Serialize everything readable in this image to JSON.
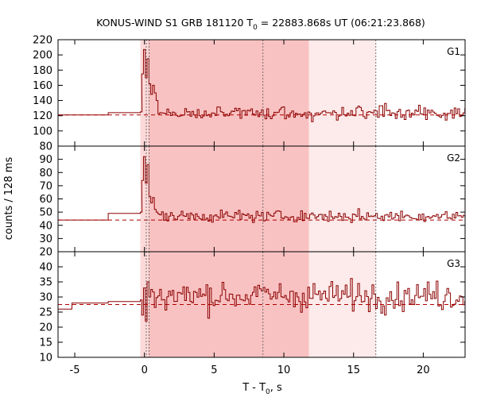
{
  "chart_data": {
    "type": "line",
    "title_main": "KONUS-WIND S1 GRB 181120 T",
    "title_sub": "0",
    "title_rest": " = 22883.868s UT (06:21:23.868)",
    "xlabel_main": "T - T",
    "xlabel_sub": "0",
    "xlabel_rest": ", s",
    "ylabel": "counts / 128 ms",
    "xlim": [
      -6.2,
      23.0
    ],
    "xticks": [
      -5,
      0,
      5,
      10,
      15,
      20
    ],
    "shaded_regions": [
      {
        "from": -0.3,
        "to": 11.8,
        "color": "#fdd9d9"
      },
      {
        "from": 0.3,
        "to": 11.8,
        "color": "#f9c2c2"
      },
      {
        "from": 11.8,
        "to": 16.6,
        "color": "#fdeaea"
      }
    ],
    "vertical_markers": [
      0.13,
      0.33,
      8.5,
      16.6
    ],
    "colors": {
      "curve": "#8b0000",
      "background_line": "#b00000",
      "shade": "#f9c2c2",
      "marker": "#555555"
    },
    "panels": [
      {
        "label": "G1",
        "ylim": [
          80,
          220
        ],
        "yticks": [
          80,
          100,
          120,
          140,
          160,
          180,
          200,
          220
        ],
        "background_level": 121,
        "pre_burst": [
          {
            "x0": -6.2,
            "x1": -2.6,
            "y": 121
          },
          {
            "x0": -2.6,
            "x1": -0.3,
            "y": 124
          }
        ],
        "burst_peaks": [
          {
            "x": -0.3,
            "y": 125
          },
          {
            "x": -0.2,
            "y": 175
          },
          {
            "x": -0.07,
            "y": 207
          },
          {
            "x": 0.06,
            "y": 170
          },
          {
            "x": 0.19,
            "y": 195
          },
          {
            "x": 0.32,
            "y": 162
          },
          {
            "x": 0.45,
            "y": 148
          },
          {
            "x": 0.58,
            "y": 160
          },
          {
            "x": 0.71,
            "y": 150
          },
          {
            "x": 0.84,
            "y": 140
          }
        ],
        "noise_sigma": 9
      },
      {
        "label": "G2",
        "ylim": [
          20,
          100
        ],
        "yticks": [
          20,
          30,
          40,
          50,
          60,
          70,
          80,
          90
        ],
        "background_level": 44,
        "pre_burst": [
          {
            "x0": -6.2,
            "x1": -2.6,
            "y": 44
          },
          {
            "x0": -2.6,
            "x1": -0.3,
            "y": 49
          }
        ],
        "burst_peaks": [
          {
            "x": -0.3,
            "y": 50
          },
          {
            "x": -0.2,
            "y": 74
          },
          {
            "x": -0.07,
            "y": 92
          },
          {
            "x": 0.06,
            "y": 72
          },
          {
            "x": 0.19,
            "y": 86
          },
          {
            "x": 0.32,
            "y": 62
          },
          {
            "x": 0.45,
            "y": 57
          },
          {
            "x": 0.58,
            "y": 61
          },
          {
            "x": 0.71,
            "y": 52
          },
          {
            "x": 0.84,
            "y": 50
          }
        ],
        "noise_sigma": 4
      },
      {
        "label": "G3",
        "ylim": [
          10,
          45
        ],
        "yticks": [
          10,
          15,
          20,
          25,
          30,
          35,
          40
        ],
        "background_level": 27.5,
        "pre_burst": [
          {
            "x0": -6.2,
            "x1": -5.2,
            "y": 26
          },
          {
            "x0": -5.2,
            "x1": -2.6,
            "y": 28
          },
          {
            "x0": -2.6,
            "x1": -0.3,
            "y": 28.5
          }
        ],
        "burst_peaks": [
          {
            "x": -0.3,
            "y": 29
          },
          {
            "x": -0.2,
            "y": 24
          },
          {
            "x": -0.07,
            "y": 33
          },
          {
            "x": 0.06,
            "y": 22
          },
          {
            "x": 0.19,
            "y": 35
          },
          {
            "x": 0.32,
            "y": 30
          }
        ],
        "noise_sigma": 4.5
      }
    ]
  }
}
